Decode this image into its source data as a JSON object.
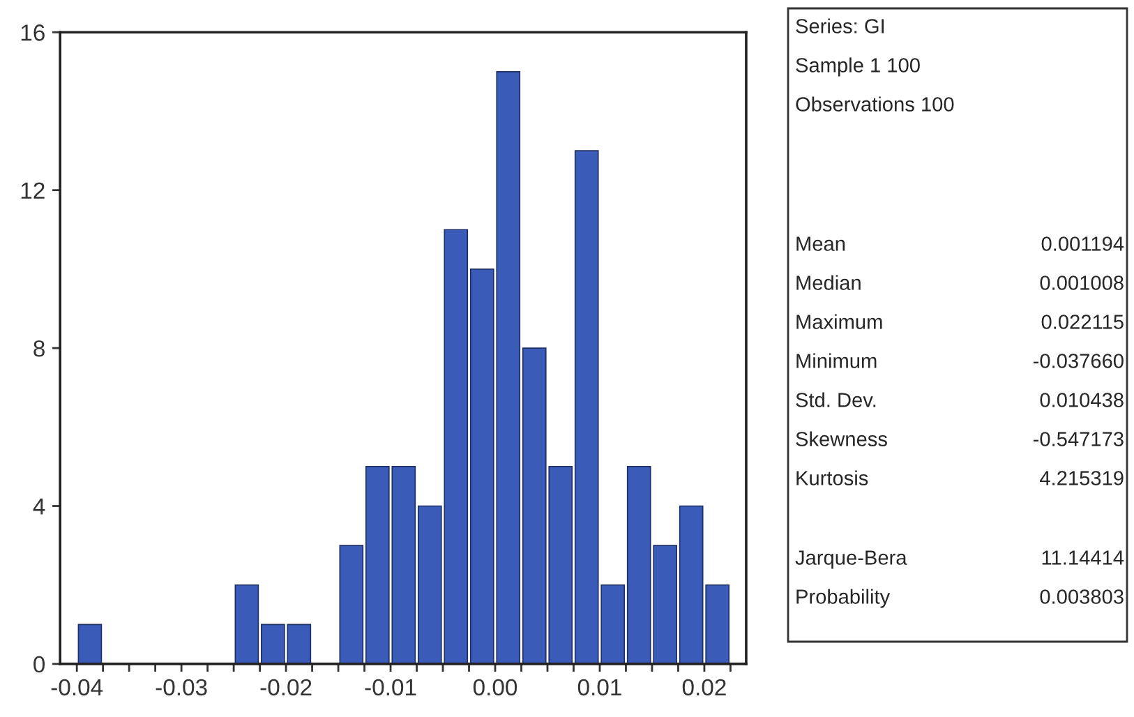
{
  "chart_data": {
    "type": "histogram",
    "bins": [
      -0.04,
      -0.0375,
      -0.035,
      -0.0325,
      -0.03,
      -0.0275,
      -0.025,
      -0.0225,
      -0.02,
      -0.0175,
      -0.015,
      -0.0125,
      -0.01,
      -0.0075,
      -0.005,
      -0.0025,
      0.0,
      0.0025,
      0.005,
      0.0075,
      0.01,
      0.0125,
      0.015,
      0.0175,
      0.02,
      0.0225
    ],
    "values": [
      1,
      0,
      0,
      0,
      0,
      0,
      2,
      1,
      1,
      0,
      3,
      5,
      5,
      4,
      11,
      10,
      15,
      8,
      5,
      13,
      2,
      5,
      3,
      4,
      2
    ],
    "color": "#3a5cb8",
    "xlim": [
      -0.0416,
      0.024
    ],
    "ylim": [
      0,
      16
    ],
    "xticks": [
      {
        "value": -0.04,
        "label": "-0.04"
      },
      {
        "value": -0.0375,
        "label": null
      },
      {
        "value": -0.035,
        "label": null
      },
      {
        "value": -0.0325,
        "label": null
      },
      {
        "value": -0.03,
        "label": "-0.03"
      },
      {
        "value": -0.0275,
        "label": null
      },
      {
        "value": -0.025,
        "label": null
      },
      {
        "value": -0.0225,
        "label": null
      },
      {
        "value": -0.02,
        "label": "-0.02"
      },
      {
        "value": -0.0175,
        "label": null
      },
      {
        "value": -0.015,
        "label": null
      },
      {
        "value": -0.0125,
        "label": null
      },
      {
        "value": -0.01,
        "label": "-0.01"
      },
      {
        "value": -0.0075,
        "label": null
      },
      {
        "value": -0.005,
        "label": null
      },
      {
        "value": -0.0025,
        "label": null
      },
      {
        "value": 0.0,
        "label": "0.00"
      },
      {
        "value": 0.0025,
        "label": null
      },
      {
        "value": 0.005,
        "label": null
      },
      {
        "value": 0.0075,
        "label": null
      },
      {
        "value": 0.01,
        "label": "0.01"
      },
      {
        "value": 0.0125,
        "label": null
      },
      {
        "value": 0.015,
        "label": null
      },
      {
        "value": 0.0175,
        "label": null
      },
      {
        "value": 0.02,
        "label": "0.02"
      },
      {
        "value": 0.0225,
        "label": null
      }
    ],
    "yticks": [
      0,
      4,
      8,
      12,
      16
    ],
    "grid": false,
    "legend": false,
    "annotations": [
      "Series: GI",
      "Sample 1 100",
      "Observations 100",
      "Mean",
      "0.001194",
      "Median",
      "0.001008",
      "Maximum",
      "0.022115",
      "Minimum",
      "-0.037660",
      "Std. Dev.",
      "0.010438",
      "Skewness",
      "-0.547173",
      "Kurtosis",
      "4.215319",
      "Jarque-Bera",
      "11.14414",
      "Probability",
      "0.003803"
    ]
  }
}
